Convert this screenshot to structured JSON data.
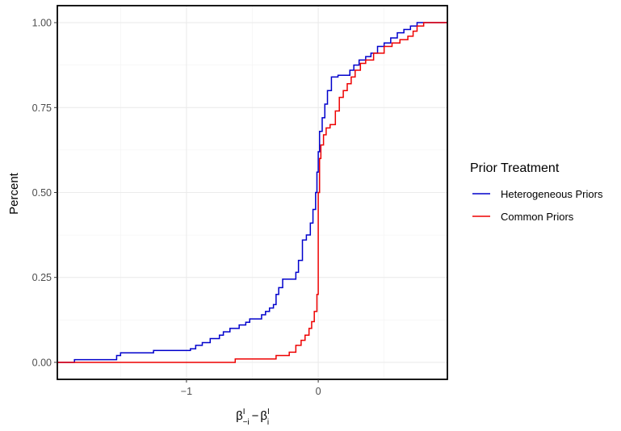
{
  "chart_data": {
    "type": "line",
    "subtype": "empirical-cdf-step",
    "ylabel": "Percent",
    "xlabel_parts": {
      "base1": "β",
      "sup1": "I",
      "sub1": "−i",
      "minus": "−",
      "base2": "β",
      "sup2": "I",
      "sub2": "i"
    },
    "xlim": [
      -1.98,
      0.98
    ],
    "ylim": [
      -0.05,
      1.05
    ],
    "x_ticks": [
      -1,
      0
    ],
    "x_tick_labels": [
      "−1",
      "0"
    ],
    "y_ticks": [
      0,
      0.25,
      0.5,
      0.75,
      1.0
    ],
    "y_tick_labels": [
      "0.00",
      "0.25",
      "0.50",
      "0.75",
      "1.00"
    ],
    "grid": true,
    "legend": {
      "title": "Prior Treatment",
      "position": "right"
    },
    "series": [
      {
        "name": "Heterogeneous Priors",
        "color": "#0000cc",
        "points": [
          [
            -1.98,
            0.0
          ],
          [
            -1.85,
            0.008
          ],
          [
            -1.53,
            0.02
          ],
          [
            -1.5,
            0.028
          ],
          [
            -1.25,
            0.035
          ],
          [
            -0.97,
            0.04
          ],
          [
            -0.93,
            0.05
          ],
          [
            -0.88,
            0.058
          ],
          [
            -0.82,
            0.07
          ],
          [
            -0.75,
            0.08
          ],
          [
            -0.72,
            0.09
          ],
          [
            -0.67,
            0.1
          ],
          [
            -0.6,
            0.11
          ],
          [
            -0.55,
            0.118
          ],
          [
            -0.52,
            0.128
          ],
          [
            -0.43,
            0.14
          ],
          [
            -0.4,
            0.15
          ],
          [
            -0.37,
            0.16
          ],
          [
            -0.34,
            0.17
          ],
          [
            -0.32,
            0.2
          ],
          [
            -0.3,
            0.22
          ],
          [
            -0.27,
            0.245
          ],
          [
            -0.17,
            0.265
          ],
          [
            -0.15,
            0.3
          ],
          [
            -0.12,
            0.36
          ],
          [
            -0.09,
            0.375
          ],
          [
            -0.06,
            0.41
          ],
          [
            -0.04,
            0.45
          ],
          [
            -0.02,
            0.5
          ],
          [
            -0.01,
            0.56
          ],
          [
            0.0,
            0.62
          ],
          [
            0.01,
            0.68
          ],
          [
            0.03,
            0.72
          ],
          [
            0.05,
            0.76
          ],
          [
            0.07,
            0.8
          ],
          [
            0.1,
            0.84
          ],
          [
            0.15,
            0.845
          ],
          [
            0.24,
            0.86
          ],
          [
            0.27,
            0.875
          ],
          [
            0.31,
            0.89
          ],
          [
            0.36,
            0.9
          ],
          [
            0.4,
            0.91
          ],
          [
            0.45,
            0.93
          ],
          [
            0.5,
            0.94
          ],
          [
            0.55,
            0.955
          ],
          [
            0.6,
            0.97
          ],
          [
            0.65,
            0.98
          ],
          [
            0.7,
            0.99
          ],
          [
            0.75,
            1.0
          ],
          [
            0.98,
            1.0
          ]
        ]
      },
      {
        "name": "Common Priors",
        "color": "#ee0000",
        "points": [
          [
            -1.98,
            0.0
          ],
          [
            -0.63,
            0.01
          ],
          [
            -0.32,
            0.02
          ],
          [
            -0.22,
            0.03
          ],
          [
            -0.17,
            0.05
          ],
          [
            -0.13,
            0.065
          ],
          [
            -0.1,
            0.08
          ],
          [
            -0.07,
            0.1
          ],
          [
            -0.05,
            0.12
          ],
          [
            -0.03,
            0.15
          ],
          [
            -0.01,
            0.2
          ],
          [
            0.0,
            0.5
          ],
          [
            0.01,
            0.6
          ],
          [
            0.02,
            0.64
          ],
          [
            0.04,
            0.67
          ],
          [
            0.06,
            0.69
          ],
          [
            0.09,
            0.7
          ],
          [
            0.13,
            0.74
          ],
          [
            0.16,
            0.78
          ],
          [
            0.19,
            0.8
          ],
          [
            0.22,
            0.82
          ],
          [
            0.25,
            0.84
          ],
          [
            0.28,
            0.86
          ],
          [
            0.32,
            0.88
          ],
          [
            0.36,
            0.89
          ],
          [
            0.42,
            0.91
          ],
          [
            0.5,
            0.93
          ],
          [
            0.56,
            0.94
          ],
          [
            0.62,
            0.95
          ],
          [
            0.68,
            0.96
          ],
          [
            0.72,
            0.975
          ],
          [
            0.75,
            0.99
          ],
          [
            0.8,
            1.0
          ],
          [
            0.98,
            1.0
          ]
        ]
      }
    ]
  }
}
